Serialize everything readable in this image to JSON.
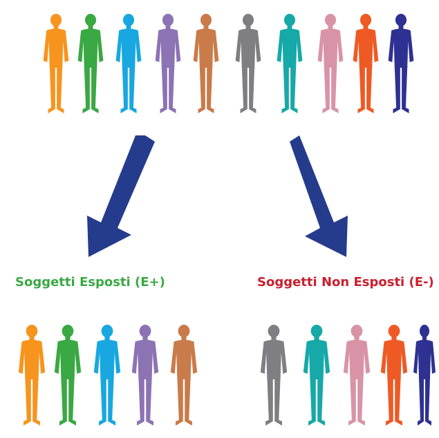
{
  "labels": {
    "exposed": "Soggetti Esposti (E+)",
    "unexposed": "Soggetti Non Esposti (E-)"
  },
  "colors": {
    "exposed_text": "#3aa843",
    "unexposed_text": "#c8202f",
    "arrow": "#253c8c"
  },
  "population": {
    "colors": [
      "#f7941d",
      "#3aa843",
      "#18a7e0",
      "#8c73b3",
      "#c97b4a",
      "#7f7f82",
      "#16a9a8",
      "#d993a7",
      "#ef5a24",
      "#2e3192"
    ]
  },
  "groups": {
    "exposed": [
      "#f7941d",
      "#3aa843",
      "#18a7e0",
      "#8c73b3",
      "#c97b4a"
    ],
    "unexposed": [
      "#7f7f82",
      "#16a9a8",
      "#d993a7",
      "#ef5a24",
      "#2e3192"
    ]
  }
}
